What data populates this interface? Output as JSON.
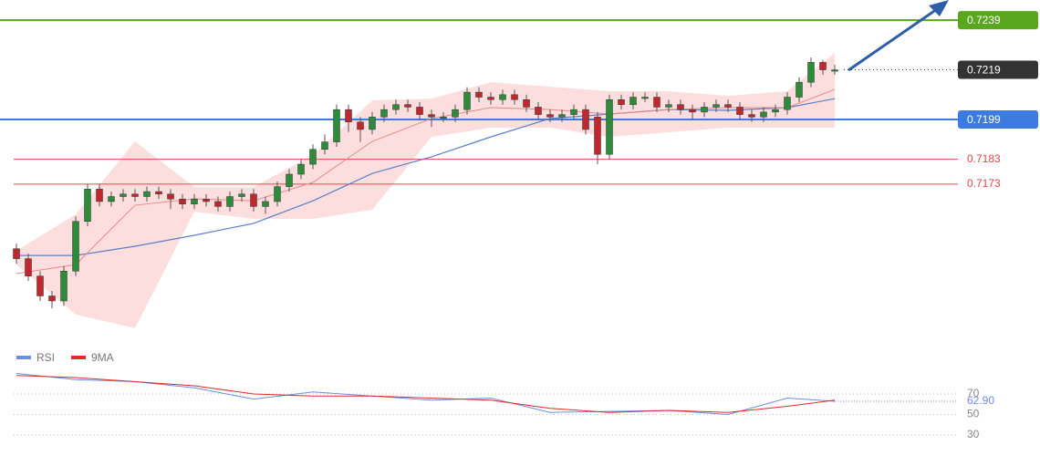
{
  "chart_data": {
    "type": "candlestick",
    "ylim": [
      0.71113,
      0.72471
    ],
    "up_color": "#2e8b3a",
    "down_color": "#c0282d",
    "candles": {
      "open": [
        0.7147,
        0.7143,
        0.7136,
        0.7128,
        0.7126,
        0.7138,
        0.7158,
        0.7171,
        0.7166,
        0.7168,
        0.7169,
        0.7168,
        0.717,
        0.7169,
        0.7167,
        0.7165,
        0.7167,
        0.7166,
        0.7164,
        0.7168,
        0.7169,
        0.7164,
        0.7166,
        0.7172,
        0.7177,
        0.7181,
        0.7187,
        0.719,
        0.7203,
        0.7198,
        0.7195,
        0.72,
        0.7203,
        0.7205,
        0.7204,
        0.7201,
        0.72,
        0.72,
        0.7203,
        0.721,
        0.7208,
        0.7207,
        0.7209,
        0.7207,
        0.7204,
        0.7201,
        0.72,
        0.7201,
        0.7203,
        0.72,
        0.7185,
        0.7207,
        0.7205,
        0.7208,
        0.7208,
        0.7204,
        0.7205,
        0.7203,
        0.7202,
        0.7204,
        0.7205,
        0.7204,
        0.7201,
        0.72,
        0.7202,
        0.7203,
        0.7208,
        0.7214,
        0.7222,
        0.7219
      ],
      "high": [
        0.7149,
        0.7145,
        0.7138,
        0.713,
        0.714,
        0.716,
        0.7173,
        0.7173,
        0.717,
        0.7171,
        0.7171,
        0.7172,
        0.7172,
        0.7171,
        0.7169,
        0.7169,
        0.7169,
        0.7168,
        0.717,
        0.7171,
        0.7171,
        0.7168,
        0.7174,
        0.7179,
        0.7183,
        0.7189,
        0.7193,
        0.7205,
        0.7205,
        0.72,
        0.7202,
        0.7205,
        0.7207,
        0.7207,
        0.7206,
        0.7203,
        0.7202,
        0.7205,
        0.7212,
        0.7212,
        0.721,
        0.7211,
        0.7211,
        0.7209,
        0.7206,
        0.7203,
        0.7203,
        0.7205,
        0.7205,
        0.7202,
        0.7209,
        0.7209,
        0.721,
        0.721,
        0.721,
        0.7207,
        0.7207,
        0.7205,
        0.7206,
        0.7207,
        0.7207,
        0.7206,
        0.7203,
        0.7204,
        0.7205,
        0.721,
        0.7216,
        0.7224,
        0.7223,
        0.7221
      ],
      "low": [
        0.7141,
        0.7134,
        0.7126,
        0.7123,
        0.7124,
        0.7136,
        0.7156,
        0.7164,
        0.7164,
        0.7166,
        0.7166,
        0.7166,
        0.7167,
        0.7163,
        0.7163,
        0.7163,
        0.7164,
        0.7162,
        0.7162,
        0.7166,
        0.7162,
        0.7161,
        0.7164,
        0.717,
        0.7175,
        0.7179,
        0.7185,
        0.7188,
        0.7194,
        0.719,
        0.7193,
        0.7198,
        0.7201,
        0.7202,
        0.7199,
        0.7196,
        0.7198,
        0.7198,
        0.7201,
        0.7206,
        0.7205,
        0.7205,
        0.7205,
        0.7202,
        0.7199,
        0.7198,
        0.7198,
        0.7199,
        0.7193,
        0.7181,
        0.7183,
        0.7203,
        0.7203,
        0.7206,
        0.7202,
        0.7202,
        0.7201,
        0.7199,
        0.72,
        0.7202,
        0.7202,
        0.7199,
        0.7198,
        0.7198,
        0.72,
        0.7201,
        0.7206,
        0.7212,
        0.7217,
        0.7217
      ],
      "close": [
        0.7143,
        0.7136,
        0.7128,
        0.7126,
        0.7138,
        0.7158,
        0.7171,
        0.7166,
        0.7168,
        0.7169,
        0.7168,
        0.717,
        0.7169,
        0.7167,
        0.7165,
        0.7167,
        0.7166,
        0.7164,
        0.7168,
        0.7169,
        0.7164,
        0.7166,
        0.7172,
        0.7177,
        0.7181,
        0.7187,
        0.719,
        0.7203,
        0.7198,
        0.7195,
        0.72,
        0.7203,
        0.7205,
        0.7204,
        0.7201,
        0.72,
        0.72,
        0.7203,
        0.721,
        0.7208,
        0.7207,
        0.7209,
        0.7207,
        0.7204,
        0.7201,
        0.72,
        0.7201,
        0.7203,
        0.7195,
        0.7185,
        0.7207,
        0.7205,
        0.7208,
        0.7208,
        0.7204,
        0.7205,
        0.7203,
        0.7202,
        0.7204,
        0.7205,
        0.7204,
        0.7201,
        0.72,
        0.7202,
        0.7203,
        0.7208,
        0.7214,
        0.7222,
        0.7219,
        0.7219
      ]
    },
    "overlay_index": [
      0,
      5,
      10,
      15,
      20,
      25,
      30,
      35,
      40,
      45,
      50,
      55,
      60,
      65,
      69
    ],
    "band": {
      "color": "#fbd3d3",
      "upper": [
        0.71462,
        0.71608,
        0.71902,
        0.71718,
        0.71718,
        0.71847,
        0.72067,
        0.72074,
        0.7214,
        0.72122,
        0.72104,
        0.72104,
        0.72085,
        0.72104,
        0.72258
      ],
      "lower": [
        0.71406,
        0.71205,
        0.7115,
        0.71619,
        0.7159,
        0.7159,
        0.71627,
        0.7192,
        0.71957,
        0.71957,
        0.7192,
        0.71939,
        0.71957,
        0.71957,
        0.71957
      ]
    },
    "ma_fast": {
      "color": "#e88a8a",
      "values": [
        0.7137,
        0.71406,
        0.71645,
        0.71671,
        0.71663,
        0.71737,
        0.71902,
        0.71994,
        0.72038,
        0.7203,
        0.72012,
        0.7203,
        0.72038,
        0.72038,
        0.72111
      ]
    },
    "ma_slow": {
      "color": "#5b7fc7",
      "values": [
        0.71443,
        0.71443,
        0.7148,
        0.71524,
        0.71572,
        0.71663,
        0.71773,
        0.7184,
        0.7192,
        0.71994,
        0.72012,
        0.7203,
        0.72027,
        0.72038,
        0.72074
      ]
    },
    "levels": [
      {
        "value": 0.7239,
        "color": "#5aa61e",
        "style": "solid",
        "boxed": true
      },
      {
        "value": 0.7219,
        "color": "#333333",
        "style": "dotted",
        "boxed": true
      },
      {
        "value": 0.7199,
        "color": "#3d7be0",
        "style": "solid",
        "boxed": true
      },
      {
        "value": 0.7183,
        "color": "#e0474c",
        "style": "thin",
        "boxed": false
      },
      {
        "value": 0.7173,
        "color": "#e0474c",
        "style": "thin",
        "boxed": false
      }
    ],
    "rsi": {
      "ylim": [
        10,
        98
      ],
      "yticks": [
        70,
        50,
        30
      ],
      "series": [
        {
          "name": "RSI",
          "color": "#6d8fe0",
          "values": [
            90,
            84,
            82,
            76,
            65,
            72,
            68,
            64,
            66,
            52,
            53,
            54,
            50,
            66,
            62.9
          ]
        },
        {
          "name": "9MA",
          "color": "#e02a2a",
          "values": [
            88,
            86,
            82,
            78,
            70,
            68,
            68,
            66,
            64,
            56,
            52,
            54,
            52,
            58,
            64
          ]
        }
      ],
      "marker": {
        "value": 62.9,
        "label": "62.90"
      }
    }
  }
}
